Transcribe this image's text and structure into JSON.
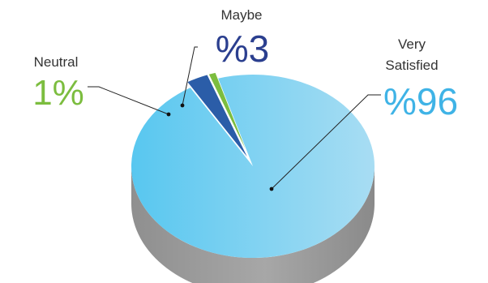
{
  "chart_data": {
    "type": "pie",
    "title": "",
    "series": [
      {
        "name": "",
        "categories": [
          "Very Satisfied",
          "Maybe",
          "Neutral"
        ],
        "values": [
          96,
          3,
          1
        ],
        "colors": [
          "#5bc8ef",
          "#2b5da8",
          "#7cbd3f"
        ],
        "value_labels": [
          "%96",
          "%3",
          "1%"
        ]
      }
    ],
    "labels": {
      "very_satisfied_line1": "Very",
      "very_satisfied_line2": "Satisfied",
      "very_satisfied_value": "%96",
      "maybe": "Maybe",
      "maybe_value": "%3",
      "neutral": "Neutral",
      "neutral_value": "1%"
    },
    "label_colors": {
      "very_satisfied": "#3fb3e6",
      "maybe": "#2b3f8f",
      "neutral": "#7cbd3f",
      "category_text": "#333333"
    },
    "style": "3d",
    "legend": "none"
  }
}
